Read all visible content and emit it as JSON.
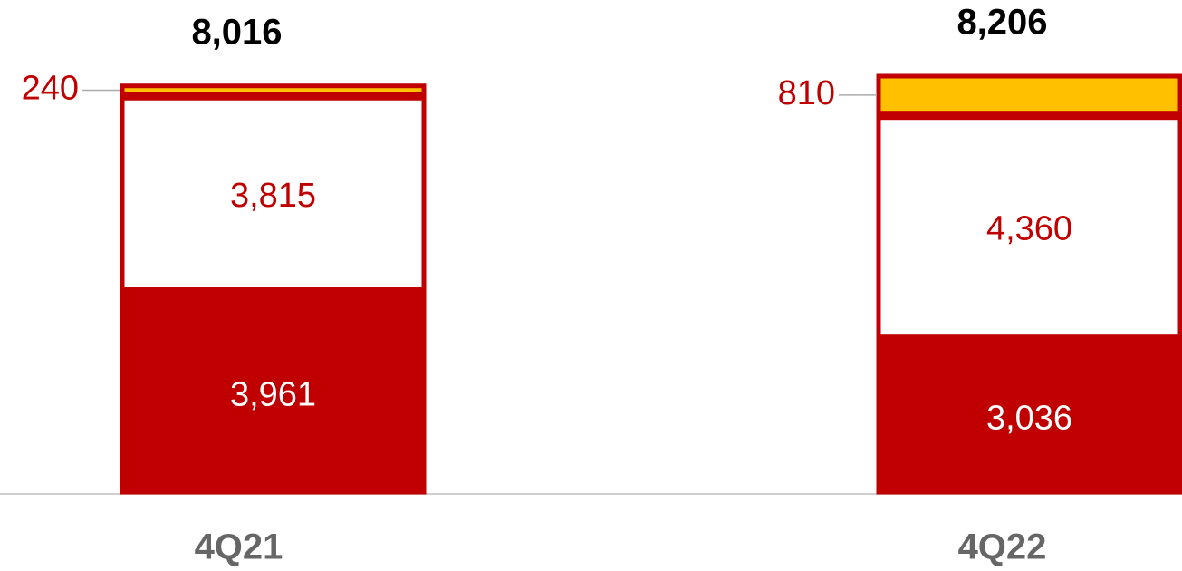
{
  "chart_data": {
    "type": "stacked_bar",
    "categories": [
      "4Q21",
      "4Q22"
    ],
    "series": [
      {
        "color": "#c00000",
        "values": [
          3961,
          3036
        ],
        "value_labels": [
          "3,961",
          "3,036"
        ]
      },
      {
        "color": "#ffffff",
        "values": [
          3815,
          4360
        ],
        "value_labels": [
          "3,815",
          "4,360"
        ]
      },
      {
        "color": "#ffc000",
        "values": [
          240,
          810
        ],
        "value_labels": [
          "240",
          "810"
        ]
      }
    ],
    "totals": [
      8016,
      8206
    ],
    "total_labels": [
      "8,016",
      "8,206"
    ]
  }
}
